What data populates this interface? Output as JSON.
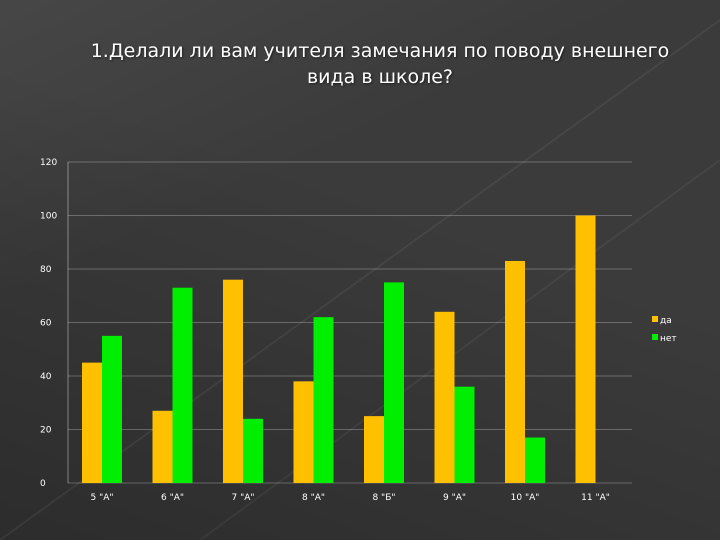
{
  "title_line1": "1.Делали ли вам учителя замечания по поводу внешнего",
  "title_line2": "вида в школе?",
  "chart_data": {
    "type": "bar",
    "categories": [
      "5 \"А\"",
      "6 \"А\"",
      "7 \"А\"",
      "8 \"А\"",
      "8 \"Б\"",
      "9 \"А\"",
      "10 \"А\"",
      "11 \"А\""
    ],
    "series": [
      {
        "name": "да",
        "color": "#FFC000",
        "values": [
          45,
          27,
          76,
          38,
          25,
          64,
          83,
          100
        ]
      },
      {
        "name": "нет",
        "color": "#00EE00",
        "values": [
          55,
          73,
          24,
          62,
          75,
          36,
          17,
          0
        ]
      }
    ],
    "ylim": [
      0,
      120
    ],
    "yticks": [
      "0",
      "20",
      "40",
      "60",
      "80",
      "100",
      "120"
    ],
    "grid": true,
    "legend": "right"
  }
}
